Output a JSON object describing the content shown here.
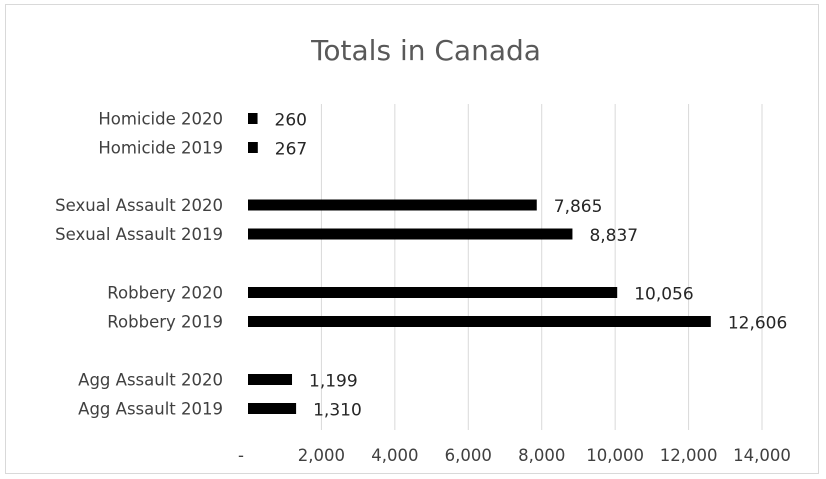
{
  "chart_data": {
    "type": "bar",
    "orientation": "horizontal",
    "title": "Totals in Canada",
    "xlabel": "",
    "ylabel": "",
    "xlim": [
      0,
      14000
    ],
    "ticks": [
      0,
      2000,
      4000,
      6000,
      8000,
      10000,
      12000,
      14000
    ],
    "tick_labels": [
      "-",
      "2,000",
      "4,000",
      "6,000",
      "8,000",
      "10,000",
      "12,000",
      "14,000"
    ],
    "grid": true,
    "bar_color": "#000000",
    "groups": [
      {
        "categories": [
          "Homicide 2020",
          "Homicide 2019"
        ],
        "values": [
          260,
          267
        ],
        "labels": [
          "260",
          "267"
        ]
      },
      {
        "categories": [
          "Sexual Assault 2020",
          "Sexual Assault 2019"
        ],
        "values": [
          7865,
          8837
        ],
        "labels": [
          "7,865",
          "8,837"
        ]
      },
      {
        "categories": [
          "Robbery 2020",
          "Robbery 2019"
        ],
        "values": [
          10056,
          12606
        ],
        "labels": [
          "10,056",
          "12,606"
        ]
      },
      {
        "categories": [
          "Agg Assault 2020",
          "Agg Assault 2019"
        ],
        "values": [
          1199,
          1310
        ],
        "labels": [
          "1,199",
          "1,310"
        ]
      }
    ]
  }
}
